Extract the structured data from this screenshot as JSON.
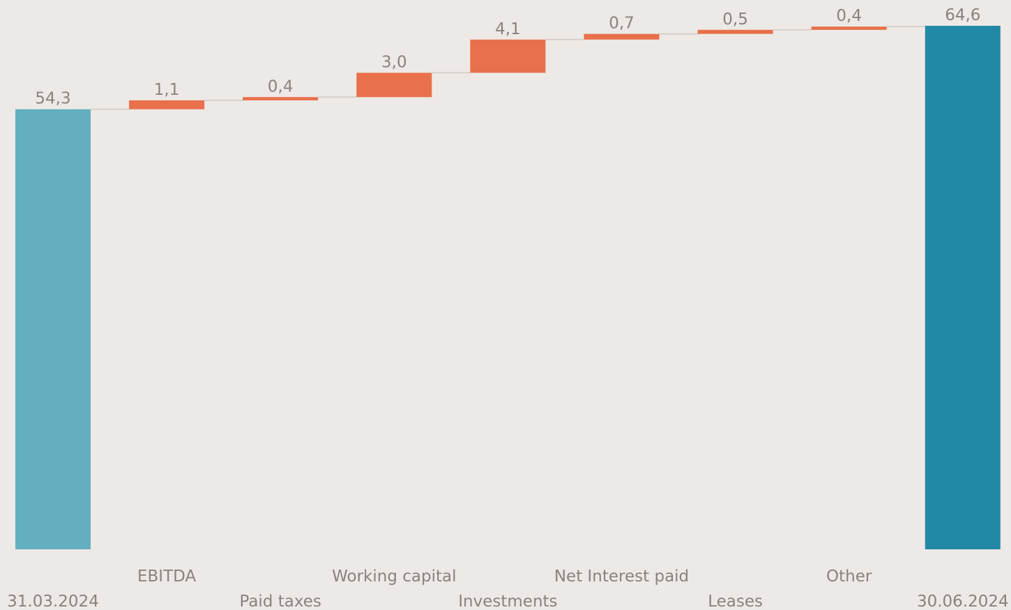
{
  "chart_data": {
    "type": "waterfall",
    "categories": [
      "31.03.2024",
      "EBITDA",
      "Paid taxes",
      "Working capital",
      "Investments",
      "Net Interest paid",
      "Leases",
      "Other",
      "30.06.2024"
    ],
    "values": [
      54.3,
      1.1,
      0.4,
      3.0,
      4.1,
      0.7,
      0.5,
      0.4,
      64.6
    ],
    "value_labels": [
      "54,3",
      "1,1",
      "0,4",
      "3,0",
      "4,1",
      "0,7",
      "0,5",
      "0,4",
      "64,6"
    ],
    "colors": [
      "#63afc0",
      "#e8704a",
      "#e8704a",
      "#e8704a",
      "#e8704a",
      "#e8704a",
      "#e8704a",
      "#e8704a",
      "#2288a6"
    ]
  }
}
